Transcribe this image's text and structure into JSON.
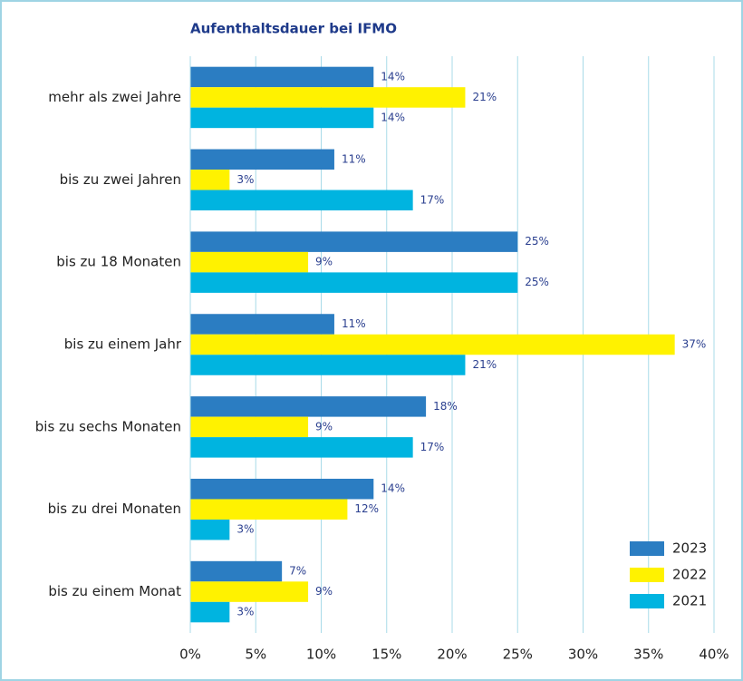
{
  "chart_data": {
    "type": "barh",
    "title": "Aufenthaltsdauer bei IFMO",
    "categories": [
      "mehr als zwei Jahre",
      "bis zu zwei Jahren",
      "bis zu 18 Monaten",
      "bis zu einem Jahr",
      "bis zu sechs Monaten",
      "bis zu drei Monaten",
      "bis zu einem Monat"
    ],
    "series": [
      {
        "name": "2023",
        "color": "#2b7dc2",
        "values": [
          14,
          11,
          25,
          11,
          18,
          14,
          7
        ],
        "value_labels": [
          "14%",
          "11%",
          "25%",
          "11%",
          "18%",
          "14%",
          "7%"
        ]
      },
      {
        "name": "2022",
        "color": "#fff200",
        "values": [
          21,
          3,
          9,
          37,
          9,
          12,
          9
        ],
        "value_labels": [
          "21%",
          "3%",
          "9%",
          "37%",
          "9%",
          "12%",
          "9%"
        ]
      },
      {
        "name": "2021",
        "color": "#00b4e0",
        "values": [
          14,
          17,
          25,
          21,
          17,
          3,
          3
        ],
        "value_labels": [
          "14%",
          "17%",
          "25%",
          "21%",
          "17%",
          "3%",
          "3%"
        ]
      }
    ],
    "xlim": [
      0,
      40
    ],
    "xticks": [
      {
        "value": 0,
        "label": "0%"
      },
      {
        "value": 5,
        "label": "5%"
      },
      {
        "value": 10,
        "label": "10%"
      },
      {
        "value": 15,
        "label": "15%"
      },
      {
        "value": 20,
        "label": "20%"
      },
      {
        "value": 25,
        "label": "25%"
      },
      {
        "value": 30,
        "label": "30%"
      },
      {
        "value": 35,
        "label": "35%"
      },
      {
        "value": 40,
        "label": "40%"
      }
    ],
    "grid": true,
    "legend": "lower right"
  }
}
